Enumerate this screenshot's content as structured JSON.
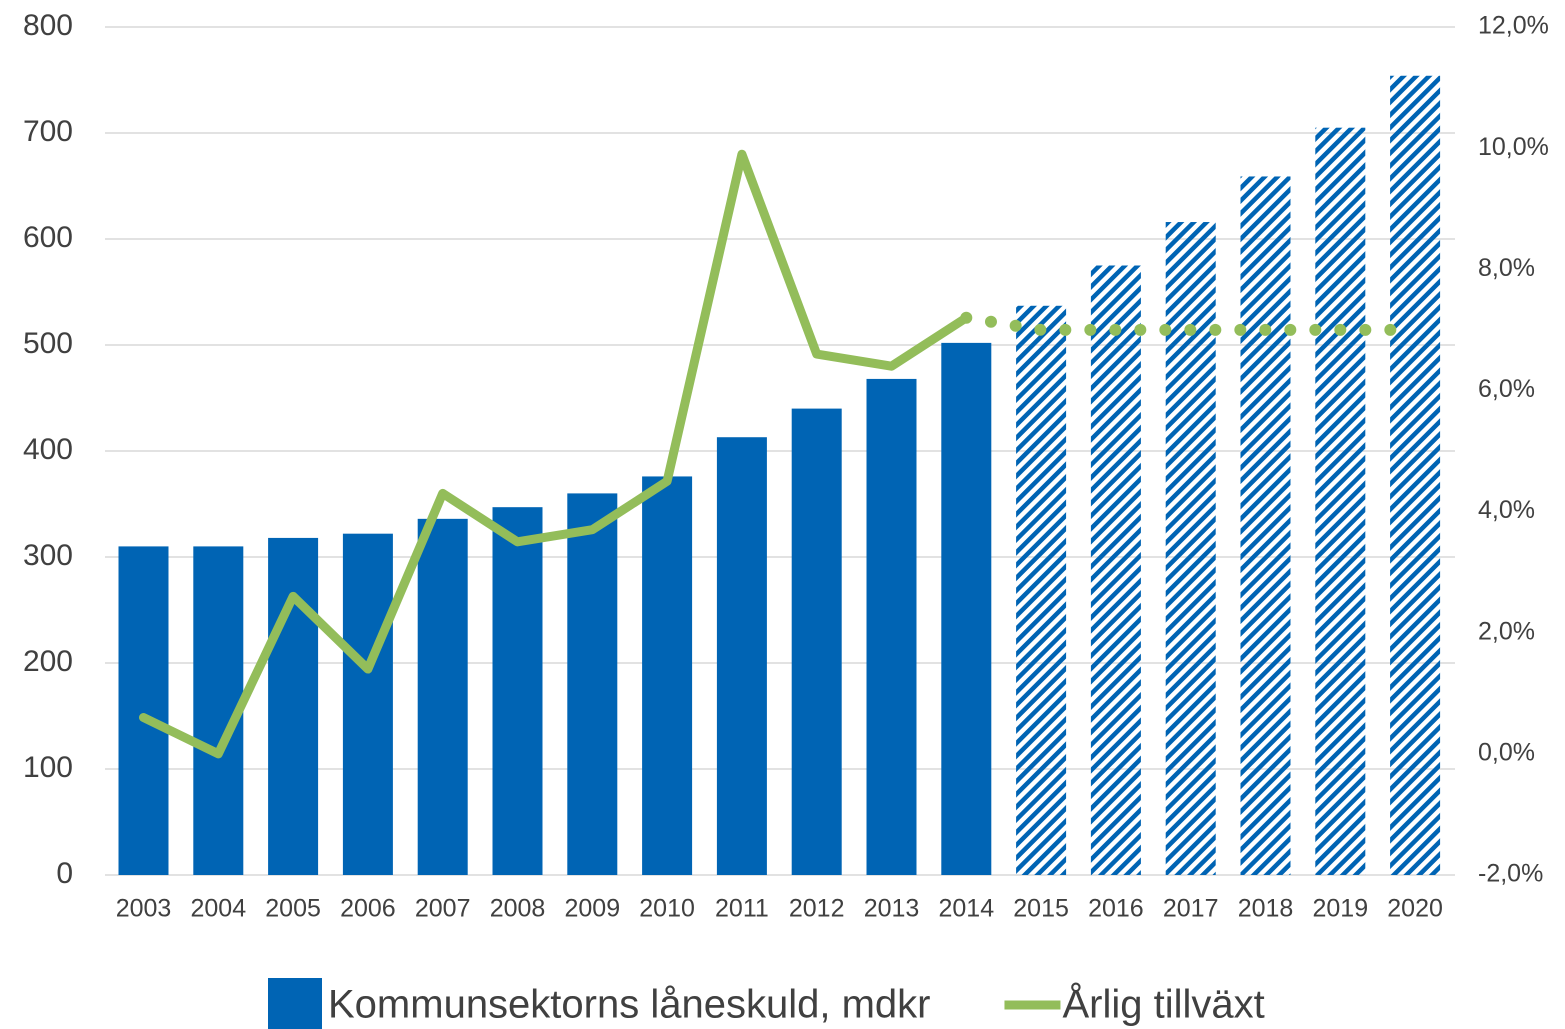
{
  "chart_data": {
    "type": "bar_line",
    "categories": [
      "2003",
      "2004",
      "2005",
      "2006",
      "2007",
      "2008",
      "2009",
      "2010",
      "2011",
      "2012",
      "2013",
      "2014",
      "2015",
      "2016",
      "2017",
      "2018",
      "2019",
      "2020"
    ],
    "series": [
      {
        "name": "Kommunsektorns låneskuld, mdkr",
        "type": "bar",
        "color": "#0064b4",
        "values": [
          310,
          310,
          318,
          322,
          336,
          347,
          360,
          376,
          413,
          440,
          468,
          502,
          537,
          575,
          616,
          659,
          705,
          754
        ],
        "styles": [
          "solid",
          "solid",
          "solid",
          "solid",
          "solid",
          "solid",
          "solid",
          "solid",
          "solid",
          "solid",
          "solid",
          "solid",
          "hatched",
          "hatched",
          "hatched",
          "hatched",
          "hatched",
          "hatched"
        ]
      },
      {
        "name": "Årlig tillväxt",
        "type": "line",
        "axis": "y2",
        "color": "#93bd5a",
        "values": [
          0.6,
          0.0,
          2.6,
          1.4,
          4.3,
          3.5,
          3.7,
          4.5,
          9.9,
          6.6,
          6.4,
          7.2,
          7.0,
          7.0,
          7.0,
          7.0,
          7.0,
          7.0
        ],
        "styles": [
          "solid",
          "solid",
          "solid",
          "solid",
          "solid",
          "solid",
          "solid",
          "solid",
          "solid",
          "solid",
          "solid",
          "solid",
          "dotted",
          "dotted",
          "dotted",
          "dotted",
          "dotted",
          "dotted"
        ]
      }
    ],
    "ylim": [
      0,
      800
    ],
    "yticks": [
      0,
      100,
      200,
      300,
      400,
      500,
      600,
      700,
      800
    ],
    "y2lim": [
      -2,
      12
    ],
    "y2ticks": [
      {
        "value": -2,
        "label": "-2,0%"
      },
      {
        "value": 0,
        "label": "0,0%"
      },
      {
        "value": 2,
        "label": "2,0%"
      },
      {
        "value": 4,
        "label": "4,0%"
      },
      {
        "value": 6,
        "label": "6,0%"
      },
      {
        "value": 8,
        "label": "8,0%"
      },
      {
        "value": 10,
        "label": "10,0%"
      },
      {
        "value": 12,
        "label": "12,0%"
      }
    ],
    "grid": true,
    "legend": "bottom"
  }
}
